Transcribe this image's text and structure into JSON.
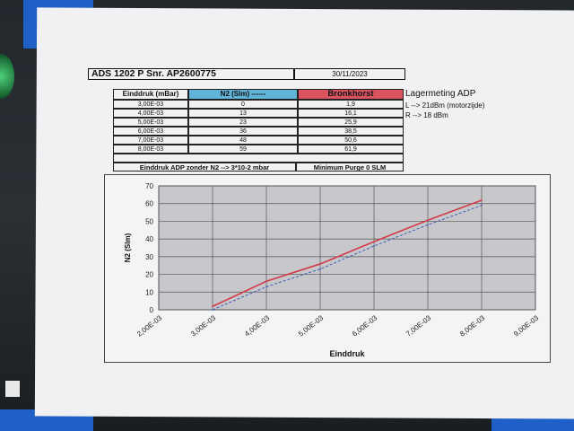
{
  "header": {
    "title": "ADS 1202 P Snr. AP2600775",
    "date": "30/11/2023"
  },
  "table": {
    "columns": [
      "Einddruk (mBar)",
      "N2 (Slm) ------",
      "Bronkhorst"
    ],
    "rows": [
      [
        "3,00E-03",
        "0",
        "1,9"
      ],
      [
        "4,00E-03",
        "13",
        "16,1"
      ],
      [
        "5,00E-03",
        "23",
        "25,9"
      ],
      [
        "6,00E-03",
        "36",
        "38,5"
      ],
      [
        "7,00E-03",
        "48",
        "50,6"
      ],
      [
        "8,00E-03",
        "59",
        "61,9"
      ]
    ],
    "footer_left": "Einddruk ADP zonder N2 --> 3*10-2 mbar",
    "footer_right": "Minimum Purge 0 SLM"
  },
  "notes": {
    "title": "Lagermeting ADP",
    "line1": "L --> 21dBm (motorzijde)",
    "line2": "R --> 18 dBm"
  },
  "colors": {
    "n2_header": "#5fb4d8",
    "bronkhorst_header": "#d9545f",
    "red_line": "#d23a4a",
    "blue_line": "#3c5fb6",
    "tape": "#1f5fc8"
  },
  "chart_data": {
    "type": "line",
    "xlabel": "Einddruk",
    "ylabel": "N2 (Slm)",
    "x_tick_labels": [
      "2,00E-03",
      "3,00E-03",
      "4,00E-03",
      "5,00E-03",
      "6,00E-03",
      "7,00E-03",
      "8,00E-03",
      "9,00E-03"
    ],
    "x": [
      0.003,
      0.004,
      0.005,
      0.006,
      0.007,
      0.008
    ],
    "xlim": [
      0.002,
      0.009
    ],
    "ylim": [
      0,
      70
    ],
    "y_ticks": [
      0,
      10,
      20,
      30,
      40,
      50,
      60,
      70
    ],
    "grid": true,
    "series": [
      {
        "values": [
          1.9,
          16.1,
          25.9,
          38.5,
          50.6,
          61.9
        ],
        "color": "#d23a4a",
        "style": "solid"
      },
      {
        "values": [
          0,
          13,
          23,
          36,
          48,
          59
        ],
        "color": "#3c5fb6",
        "style": "dashed"
      }
    ]
  }
}
